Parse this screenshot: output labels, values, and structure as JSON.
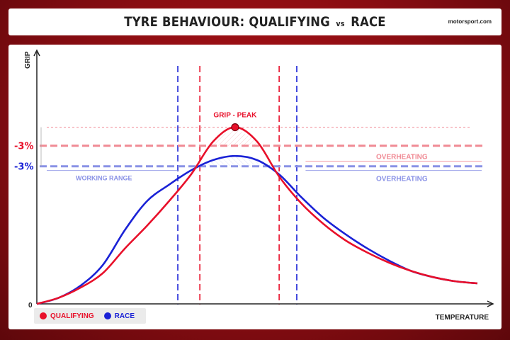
{
  "title": {
    "part1": "TYRE BEHAVIOUR: QUALIFYING",
    "vs": "vs",
    "part2": "RACE"
  },
  "brand": "motorsport.com",
  "colors": {
    "qualifying": "#e8102a",
    "race": "#1a22d6",
    "qualifying_light": "#f08a94",
    "race_light": "#8a92e6",
    "axis": "#222222"
  },
  "legend": [
    {
      "label": "QUALIFYING",
      "color": "#e8102a"
    },
    {
      "label": "RACE",
      "color": "#1a22d6"
    }
  ],
  "chart_data": {
    "type": "line",
    "xlabel": "TEMPERATURE",
    "ylabel": "GRIP",
    "y_zero_label": "0",
    "xlim": [
      0,
      100
    ],
    "ylim": [
      0,
      100
    ],
    "grid": false,
    "legend_position": "bottom-left",
    "series": [
      {
        "name": "QUALIFYING",
        "x": [
          0,
          5,
          10,
          15,
          20,
          25,
          30,
          35,
          40,
          45,
          50,
          55,
          60,
          65,
          70,
          75,
          80,
          85,
          90,
          95,
          100
        ],
        "y": [
          0,
          3,
          8,
          15,
          27,
          38,
          50,
          63,
          79,
          86,
          79,
          62,
          49,
          39,
          31,
          25,
          20,
          16,
          13,
          11,
          10
        ]
      },
      {
        "name": "RACE",
        "x": [
          0,
          5,
          10,
          15,
          20,
          25,
          30,
          35,
          40,
          45,
          50,
          55,
          60,
          65,
          70,
          75,
          80,
          85,
          90,
          95,
          100
        ],
        "y": [
          0,
          3,
          9,
          19,
          36,
          50,
          58,
          65,
          70,
          72,
          70,
          63,
          52,
          42,
          34,
          27,
          21,
          16,
          13,
          11,
          10
        ]
      }
    ],
    "peak_label": "GRIP - PEAK",
    "reference_lines": [
      {
        "label": "-3%",
        "annotation": "OVERHEATING",
        "series": "QUALIFYING",
        "y": 77
      },
      {
        "label": "-3%",
        "annotation": "OVERHEATING",
        "series": "RACE",
        "y": 67
      }
    ],
    "working_range_label": "WORKING RANGE",
    "working_ranges": [
      {
        "series": "QUALIFYING",
        "x_min": 37,
        "x_max": 55
      },
      {
        "series": "RACE",
        "x_min": 32,
        "x_max": 59
      }
    ]
  }
}
